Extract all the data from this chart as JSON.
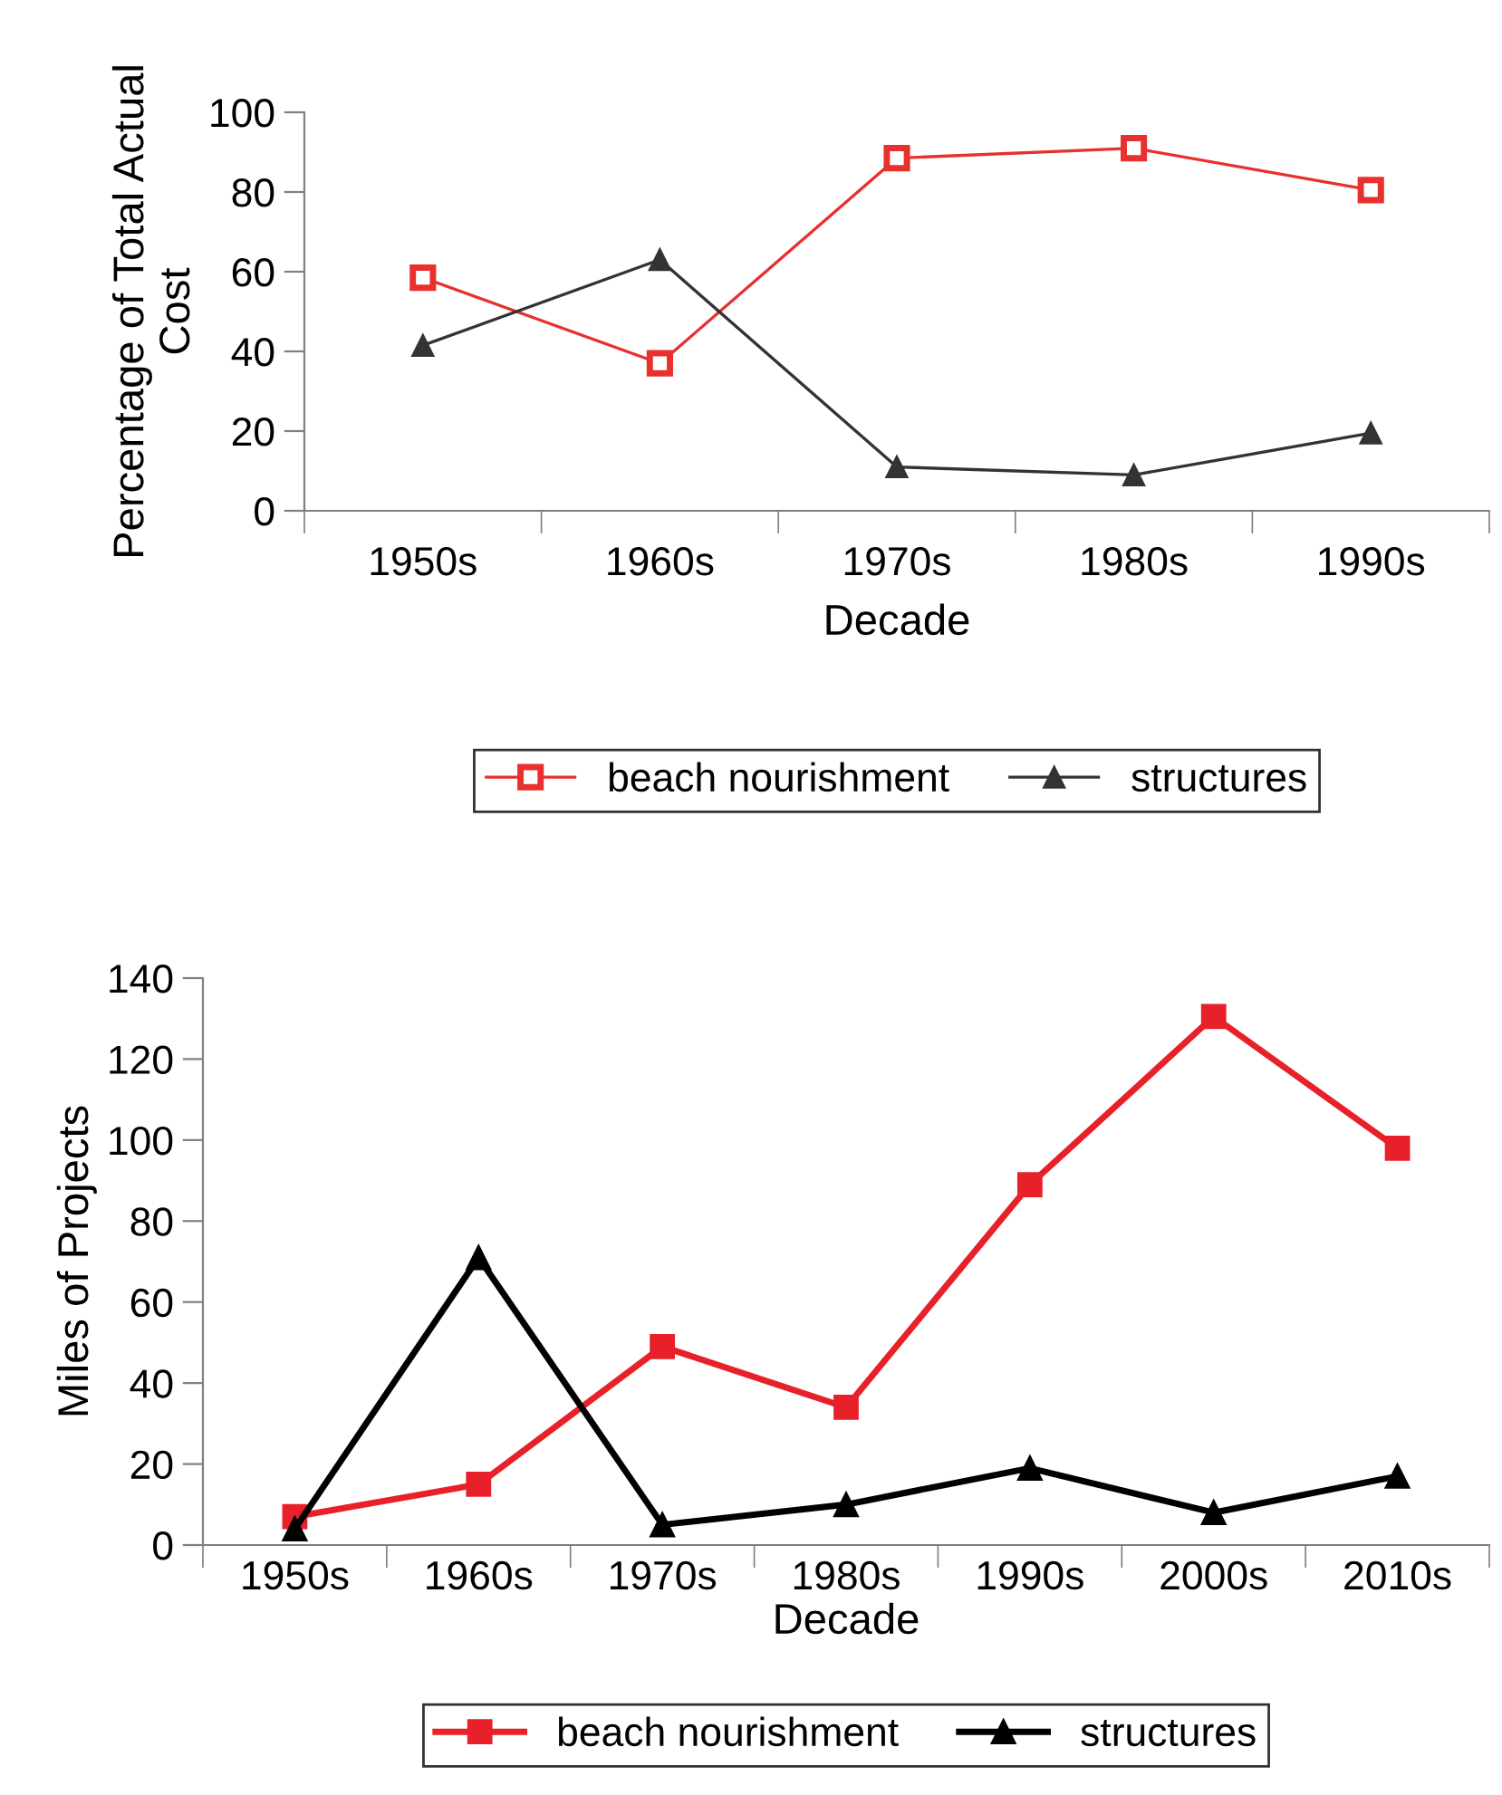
{
  "chart_data": [
    {
      "type": "line",
      "categories": [
        "1950s",
        "1960s",
        "1970s",
        "1980s",
        "1990s"
      ],
      "xlabel": "Decade",
      "ylabel": "Percentage of Total Actual\nCost",
      "ylim": [
        0,
        100
      ],
      "yticks": [
        0,
        20,
        40,
        60,
        80,
        100
      ],
      "grid": false,
      "legend": "bottom",
      "series": [
        {
          "name": "beach nourishment",
          "color": "#e8302f",
          "marker": "square",
          "values": [
            58.5,
            37,
            88.5,
            91,
            80.5
          ]
        },
        {
          "name": "structures",
          "color": "#333333",
          "marker": "triangle",
          "values": [
            41.5,
            63,
            11,
            9,
            19.5
          ]
        }
      ]
    },
    {
      "type": "line",
      "categories": [
        "1950s",
        "1960s",
        "1970s",
        "1980s",
        "1990s",
        "2000s",
        "2010s"
      ],
      "xlabel": "Decade",
      "ylabel": "Miles of Projects",
      "ylim": [
        0,
        140
      ],
      "yticks": [
        0,
        20,
        40,
        60,
        80,
        100,
        120,
        140
      ],
      "grid": false,
      "legend": "bottom",
      "series": [
        {
          "name": "beach nourishment",
          "color": "#e8202a",
          "marker": "square",
          "values": [
            7,
            15,
            49,
            34,
            89,
            130.5,
            98
          ]
        },
        {
          "name": "structures",
          "color": "#000000",
          "marker": "triangle",
          "values": [
            4,
            71,
            5,
            10,
            19,
            8,
            17
          ]
        }
      ]
    }
  ]
}
